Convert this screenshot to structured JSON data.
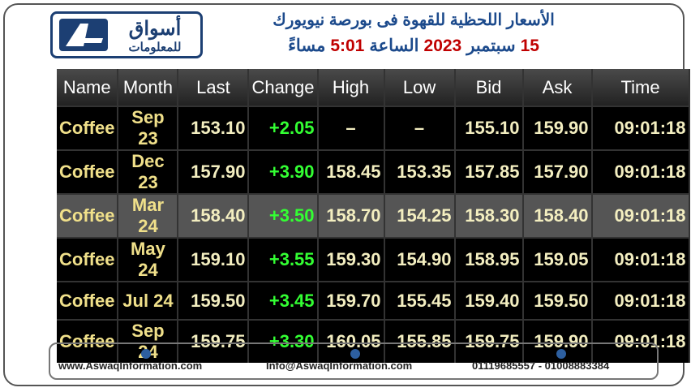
{
  "header": {
    "logo_main": "أسواق",
    "logo_sub": "للمعلومات",
    "title": "الأسعار اللحظية للقهوة فى بورصة نيويورك",
    "subtitle_parts": [
      "15",
      "سبتمبر",
      "2023",
      "الساعة",
      "5:01",
      "مساءً"
    ]
  },
  "table": {
    "columns": [
      "Name",
      "Month",
      "Last",
      "Change",
      "High",
      "Low",
      "Bid",
      "Ask",
      "Time"
    ],
    "rows": [
      [
        "Coffee",
        "Sep 23",
        "153.10",
        "+2.05",
        "–",
        "–",
        "155.10",
        "159.90",
        "09:01:18"
      ],
      [
        "Coffee",
        "Dec 23",
        "157.90",
        "+3.90",
        "158.45",
        "153.35",
        "157.85",
        "157.90",
        "09:01:18"
      ],
      [
        "Coffee",
        "Mar 24",
        "158.40",
        "+3.50",
        "158.70",
        "154.25",
        "158.30",
        "158.40",
        "09:01:18"
      ],
      [
        "Coffee",
        "May 24",
        "159.10",
        "+3.55",
        "159.30",
        "154.90",
        "158.95",
        "159.05",
        "09:01:18"
      ],
      [
        "Coffee",
        "Jul 24",
        "159.50",
        "+3.45",
        "159.70",
        "155.45",
        "159.40",
        "159.50",
        "09:01:18"
      ],
      [
        "Coffee",
        "Sep 24",
        "159.75",
        "+3.30",
        "160.05",
        "155.85",
        "159.75",
        "159.90",
        "09:01:18"
      ]
    ]
  },
  "footer": {
    "website": "www.AswaqInformation.com",
    "email": "Info@AswaqInformation.com",
    "phones": "01119685557 - 01008883384"
  }
}
